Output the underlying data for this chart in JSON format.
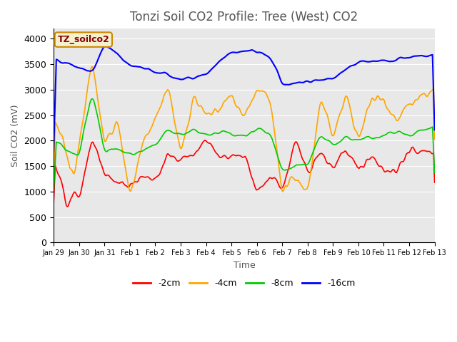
{
  "title": "Tonzi Soil CO2 Profile: Tree (West) CO2",
  "ylabel": "Soil CO2 (mV)",
  "xlabel": "Time",
  "legend_label": "TZ_soilco2",
  "series_labels": [
    "-2cm",
    "-4cm",
    "-8cm",
    "-16cm"
  ],
  "series_colors": [
    "#ff0000",
    "#ffa500",
    "#00cc00",
    "#0000ff"
  ],
  "x_tick_labels": [
    "Jan 29",
    "Jan 30",
    "Jan 31",
    "Feb 1",
    "Feb 2",
    "Feb 3",
    "Feb 4",
    "Feb 5",
    "Feb 6",
    "Feb 7",
    "Feb 8",
    "Feb 9",
    "Feb 10",
    "Feb 11",
    "Feb 12",
    "Feb 13"
  ],
  "ylim": [
    0,
    4000
  ],
  "plot_bg_color": "#e8e8e8",
  "title_fontsize": 12,
  "axis_fontsize": 9
}
